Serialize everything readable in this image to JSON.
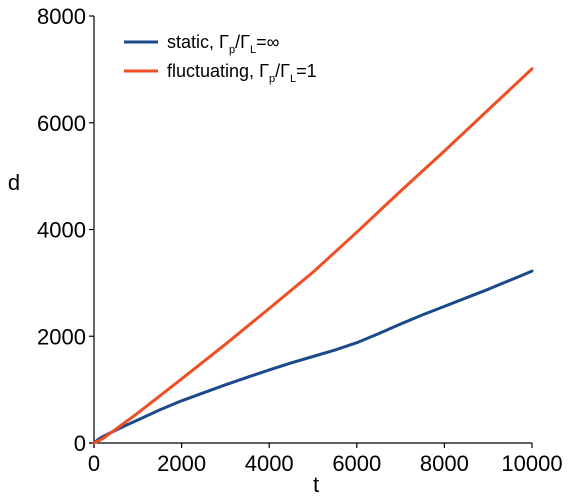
{
  "chart_data": {
    "type": "line",
    "title": "",
    "xlabel": "t",
    "ylabel": "d",
    "xlim": [
      0,
      10000
    ],
    "ylim": [
      0,
      8000
    ],
    "x_ticks": [
      "0",
      "2000",
      "4000",
      "6000",
      "8000",
      "10000"
    ],
    "y_ticks": [
      "0",
      "2000",
      "4000",
      "6000",
      "8000"
    ],
    "grid": false,
    "legend_position": "top-left",
    "series": [
      {
        "name": "static, Γp/ΓL=∞",
        "legend": {
          "lead": "static, ",
          "g1": "Γ",
          "s1": "p",
          "mid": "/",
          "g2": "Γ",
          "s2": "L",
          "tail": "=∞"
        },
        "color": "#1a4a8a",
        "x": [
          0,
          100,
          200,
          300,
          500,
          700,
          1000,
          1500,
          2000,
          2500,
          3000,
          3500,
          4000,
          4500,
          5000,
          5500,
          6000,
          6500,
          7000,
          7500,
          8000,
          8500,
          9000,
          9500,
          10000
        ],
        "y": [
          0,
          70,
          120,
          160,
          240,
          320,
          430,
          620,
          790,
          940,
          1090,
          1230,
          1370,
          1500,
          1620,
          1740,
          1880,
          2050,
          2230,
          2400,
          2560,
          2720,
          2880,
          3050,
          3220
        ]
      },
      {
        "name": "fluctuating, Γp/ΓL=1",
        "legend": {
          "lead": "fluctuating, ",
          "g1": "Γ",
          "s1": "p",
          "mid": "/",
          "g2": "Γ",
          "s2": "L",
          "tail": "=1"
        },
        "color": "#f04e23",
        "x": [
          0,
          100,
          200,
          300,
          500,
          1000,
          2000,
          3000,
          4000,
          5000,
          6000,
          7000,
          8000,
          9000,
          10000
        ],
        "y": [
          0,
          40,
          80,
          140,
          260,
          560,
          1200,
          1850,
          2520,
          3200,
          3950,
          4720,
          5470,
          6240,
          7010
        ]
      }
    ]
  }
}
